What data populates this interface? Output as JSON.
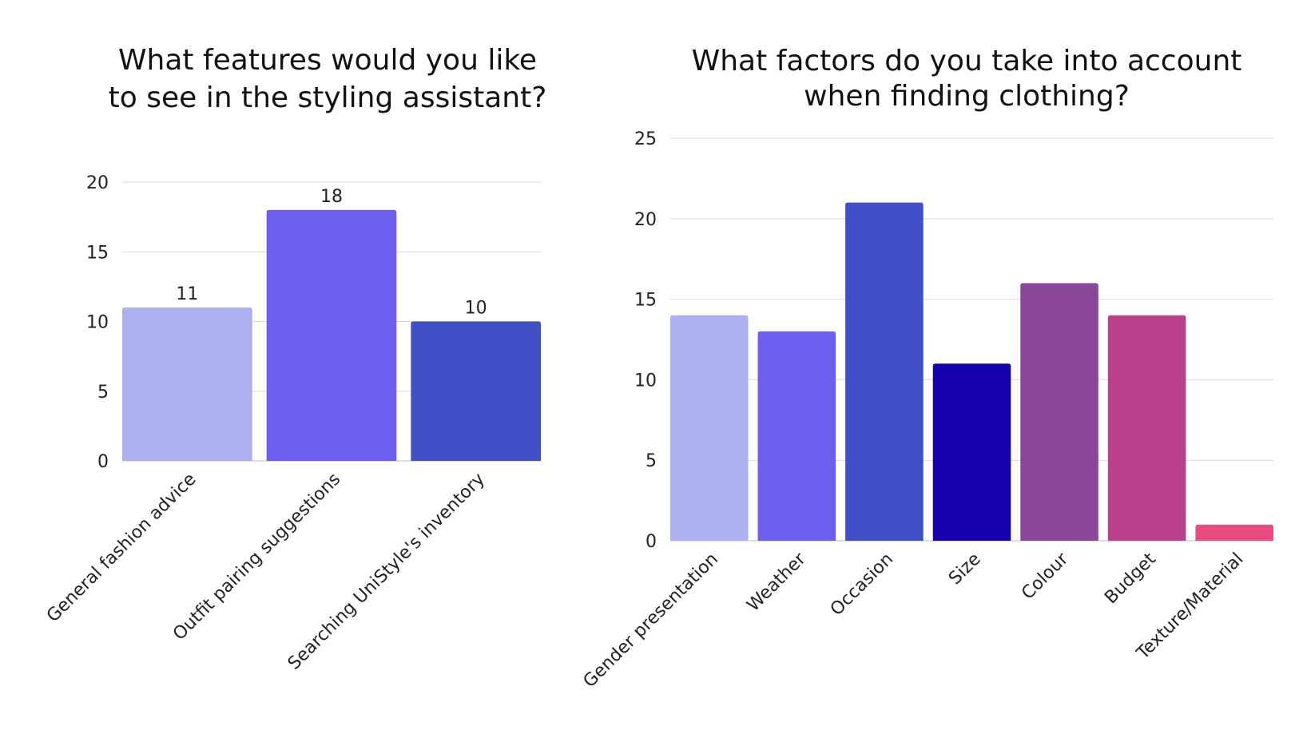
{
  "chart_data": [
    {
      "type": "bar",
      "title": "What features would you like to see in the styling assistant?",
      "categories": [
        "General fashion advice",
        "Outfit pairing suggestions",
        "Searching UniStyle's inventory"
      ],
      "values": [
        11,
        18,
        10
      ],
      "colors": [
        "#adb0ef",
        "#6d5fee",
        "#3f4fc5"
      ],
      "ylim": [
        0,
        20
      ],
      "yticks": [
        0,
        5,
        10,
        15,
        20
      ],
      "data_labels": true,
      "grid": true,
      "legend": "none",
      "xlabel": "",
      "ylabel": ""
    },
    {
      "type": "bar",
      "title": "What factors do you take into account when finding clothing?",
      "categories": [
        "Gender presentation",
        "Weather",
        "Occasion",
        "Size",
        "Colour",
        "Budget",
        "Texture/Material"
      ],
      "values": [
        14,
        13,
        21,
        11,
        16,
        14,
        1
      ],
      "colors": [
        "#adb0ef",
        "#6d5fee",
        "#3f4fc5",
        "#1700ad",
        "#8a4699",
        "#bb3f8b",
        "#e84b7e"
      ],
      "ylim": [
        0,
        25
      ],
      "yticks": [
        0,
        5,
        10,
        15,
        20,
        25
      ],
      "data_labels": false,
      "grid": true,
      "legend": "none",
      "xlabel": "",
      "ylabel": ""
    }
  ]
}
